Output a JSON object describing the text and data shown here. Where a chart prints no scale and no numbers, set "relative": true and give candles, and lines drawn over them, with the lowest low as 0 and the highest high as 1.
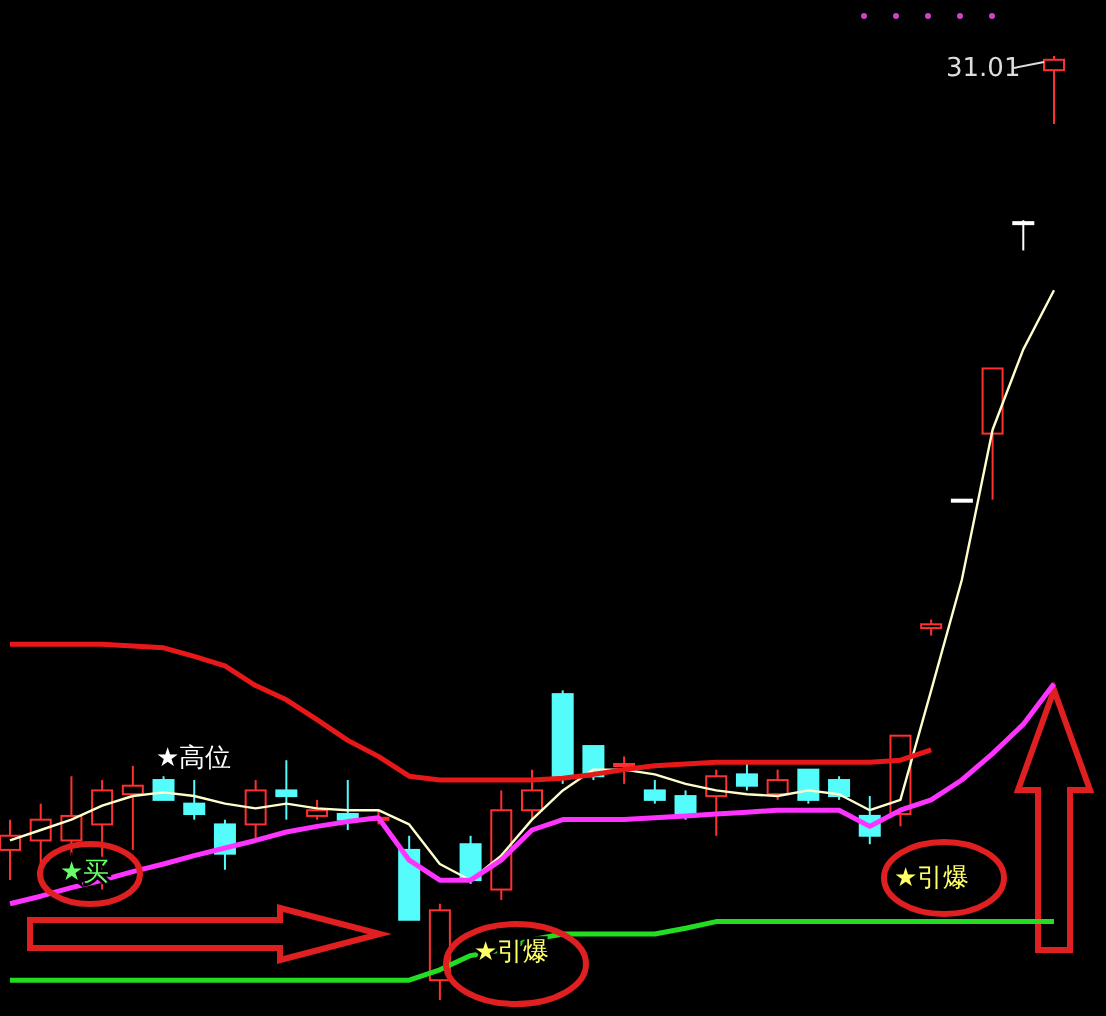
{
  "chart_data": {
    "type": "candlestick",
    "relative": true,
    "categories": [
      null,
      null,
      null,
      null,
      null,
      null,
      null,
      null,
      null,
      null,
      null,
      null,
      null,
      null,
      null,
      null,
      null,
      null,
      null,
      null,
      null,
      null,
      null,
      null,
      null,
      null,
      null,
      null,
      null,
      null,
      null,
      null,
      null,
      null,
      null
    ],
    "ohlc": [
      [
        0.159,
        0.191,
        0.127,
        0.174
      ],
      [
        0.169,
        0.208,
        0.127,
        0.191
      ],
      [
        0.169,
        0.237,
        0.148,
        0.195
      ],
      [
        0.186,
        0.233,
        0.117,
        0.222
      ],
      [
        0.218,
        0.248,
        0.159,
        0.227
      ],
      [
        0.233,
        0.237,
        0.212,
        0.212
      ],
      [
        0.208,
        0.233,
        0.191,
        0.197
      ],
      [
        0.186,
        0.191,
        0.138,
        0.155
      ],
      [
        0.186,
        0.233,
        0.169,
        0.222
      ],
      [
        0.222,
        0.254,
        0.191,
        0.216
      ],
      [
        0.195,
        0.212,
        0.191,
        0.201
      ],
      [
        0.197,
        0.233,
        0.18,
        0.191
      ],
      [
        0.191,
        0.201,
        0.186,
        0.193
      ],
      [
        0.159,
        0.174,
        0.085,
        0.085
      ],
      [
        0.021,
        0.102,
        0,
        0.095
      ],
      [
        0.165,
        0.174,
        0.123,
        0.127
      ],
      [
        0.117,
        0.222,
        0.106,
        0.201
      ],
      [
        0.201,
        0.244,
        0.191,
        0.222
      ],
      [
        0.324,
        0.328,
        0.229,
        0.237
      ],
      [
        0.269,
        0.269,
        0.233,
        0.237
      ],
      [
        0.248,
        0.258,
        0.229,
        0.25
      ],
      [
        0.222,
        0.233,
        0.208,
        0.212
      ],
      [
        0.216,
        0.222,
        0.191,
        0.197
      ],
      [
        0.216,
        0.244,
        0.174,
        0.237
      ],
      [
        0.239,
        0.254,
        0.222,
        0.227
      ],
      [
        0.218,
        0.244,
        0.212,
        0.233
      ],
      [
        0.244,
        0.244,
        0.208,
        0.212
      ],
      [
        0.233,
        0.237,
        0.212,
        0.216
      ],
      [
        0.195,
        0.216,
        0.165,
        0.174
      ],
      [
        0.197,
        0.28,
        0.184,
        0.28
      ],
      [
        0.394,
        0.403,
        0.386,
        0.398
      ],
      [
        0.528,
        0.53,
        0.528,
        0.53
      ],
      [
        0.6,
        0.669,
        0.53,
        0.669
      ],
      [
        0.824,
        0.826,
        0.794,
        0.824
      ],
      [
        0.985,
        1,
        0.928,
        0.996
      ]
    ],
    "colors": [
      "#ff3030",
      "#ff3030",
      "#ff3030",
      "#ff3030",
      "#ff3030",
      "#54fcfc",
      "#54fcfc",
      "#54fcfc",
      "#ff3030",
      "#54fcfc",
      "#ff3030",
      "#54fcfc",
      "#ff3030",
      "#54fcfc",
      "#ff3030",
      "#54fcfc",
      "#ff3030",
      "#ff3030",
      "#54fcfc",
      "#54fcfc",
      "#ff3030",
      "#54fcfc",
      "#54fcfc",
      "#ff3030",
      "#54fcfc",
      "#ff3030",
      "#54fcfc",
      "#54fcfc",
      "#54fcfc",
      "#ff3030",
      "#ff3030",
      "#ffffff",
      "#ff3030",
      "#ffffff",
      "#ff3030"
    ],
    "series": [
      {
        "type": "line",
        "color": "#ffffcc",
        "values": [
          0.169,
          0.18,
          0.191,
          0.206,
          0.216,
          0.22,
          0.216,
          0.208,
          0.203,
          0.208,
          0.203,
          0.201,
          0.201,
          0.186,
          0.144,
          0.127,
          0.153,
          0.191,
          0.222,
          0.244,
          0.244,
          0.239,
          0.229,
          0.222,
          0.218,
          0.216,
          0.222,
          0.218,
          0.201,
          0.212,
          0.328,
          0.445,
          0.604,
          0.689,
          0.752
        ]
      },
      {
        "type": "line",
        "color": "#ff33ff",
        "values": [
          0.102,
          0.11,
          0.119,
          0.127,
          0.136,
          0.144,
          0.153,
          0.161,
          0.169,
          0.178,
          0.184,
          0.189,
          0.193,
          0.148,
          0.127,
          0.127,
          0.148,
          0.18,
          0.191,
          0.191,
          0.191,
          0.193,
          0.195,
          0.197,
          0.199,
          0.201,
          0.201,
          0.201,
          0.184,
          0.201,
          0.212,
          0.233,
          0.261,
          0.292,
          0.335
        ]
      },
      {
        "type": "line",
        "color": "#e81818",
        "values": [
          0.377,
          0.377,
          0.377,
          0.377,
          0.375,
          0.373,
          0.364,
          0.354,
          0.333,
          0.318,
          0.297,
          0.275,
          0.258,
          0.237,
          0.233,
          0.233,
          0.233,
          0.233,
          0.235,
          0.239,
          0.244,
          0.248,
          0.25,
          0.252,
          0.252,
          0.252,
          0.252,
          0.252,
          0.252,
          0.254,
          0.265,
          null,
          null,
          null,
          null
        ]
      },
      {
        "type": "line",
        "color": "#22dd22",
        "values": [
          0.021,
          0.021,
          0.021,
          0.021,
          0.021,
          0.021,
          0.021,
          0.021,
          0.021,
          0.021,
          0.021,
          0.021,
          0.021,
          0.021,
          0.032,
          0.047,
          0.053,
          0.064,
          0.07,
          0.07,
          0.07,
          0.07,
          0.076,
          0.083,
          0.083,
          0.083,
          0.083,
          0.083,
          0.083,
          0.083,
          0.083,
          0.083,
          0.083,
          0.083,
          0.083
        ]
      }
    ],
    "annotations": [
      "★高位",
      "★买",
      "★引爆",
      "★引爆",
      "31.01"
    ]
  }
}
